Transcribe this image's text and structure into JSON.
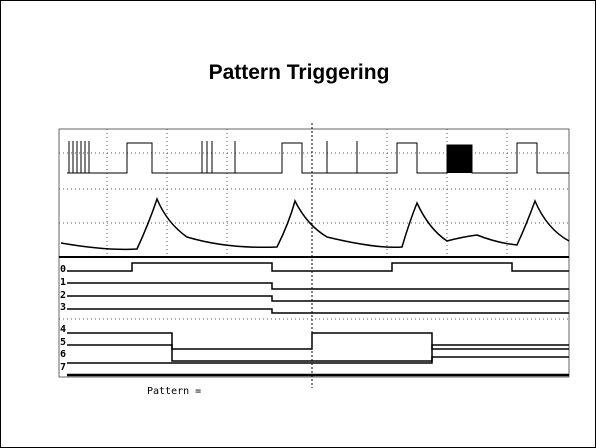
{
  "title": "Pattern Triggering",
  "channels": [
    "0",
    "1",
    "2",
    "3",
    "4",
    "5",
    "6",
    "7"
  ],
  "pattern_label": "Pattern ="
}
